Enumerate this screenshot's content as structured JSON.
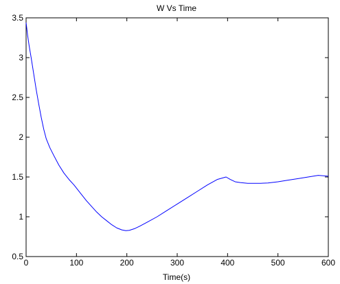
{
  "chart_data": {
    "type": "line",
    "title": "W Vs Time",
    "xlabel": "Time(s)",
    "ylabel": "",
    "xlim": [
      0,
      600
    ],
    "ylim": [
      0.5,
      3.5
    ],
    "grid": false,
    "xticks": [
      0,
      100,
      200,
      300,
      400,
      500,
      600
    ],
    "yticks": [
      0.5,
      1,
      1.5,
      2,
      2.5,
      3,
      3.5
    ],
    "xtick_labels": [
      "0",
      "100",
      "200",
      "300",
      "400",
      "500",
      "600"
    ],
    "ytick_labels": [
      "0.5",
      "1",
      "1.5",
      "2",
      "2.5",
      "3",
      "3.5"
    ],
    "series": [
      {
        "color": "#0000ff",
        "x": [
          0,
          3,
          6,
          10,
          15,
          20,
          25,
          30,
          35,
          40,
          47,
          55,
          65,
          75,
          85,
          95,
          100,
          110,
          120,
          130,
          140,
          150,
          160,
          170,
          180,
          190,
          198,
          205,
          215,
          225,
          240,
          260,
          280,
          300,
          320,
          340,
          360,
          380,
          397,
          405,
          415,
          425,
          440,
          455,
          465,
          480,
          500,
          520,
          540,
          560,
          580,
          600
        ],
        "y": [
          3.44,
          3.28,
          3.15,
          3.0,
          2.8,
          2.6,
          2.42,
          2.25,
          2.1,
          1.98,
          1.87,
          1.77,
          1.65,
          1.55,
          1.47,
          1.4,
          1.36,
          1.28,
          1.2,
          1.13,
          1.06,
          1.0,
          0.95,
          0.9,
          0.86,
          0.835,
          0.825,
          0.83,
          0.85,
          0.88,
          0.93,
          1.0,
          1.08,
          1.16,
          1.24,
          1.32,
          1.4,
          1.47,
          1.5,
          1.47,
          1.44,
          1.43,
          1.42,
          1.42,
          1.42,
          1.425,
          1.44,
          1.46,
          1.48,
          1.5,
          1.52,
          1.51
        ]
      }
    ]
  }
}
